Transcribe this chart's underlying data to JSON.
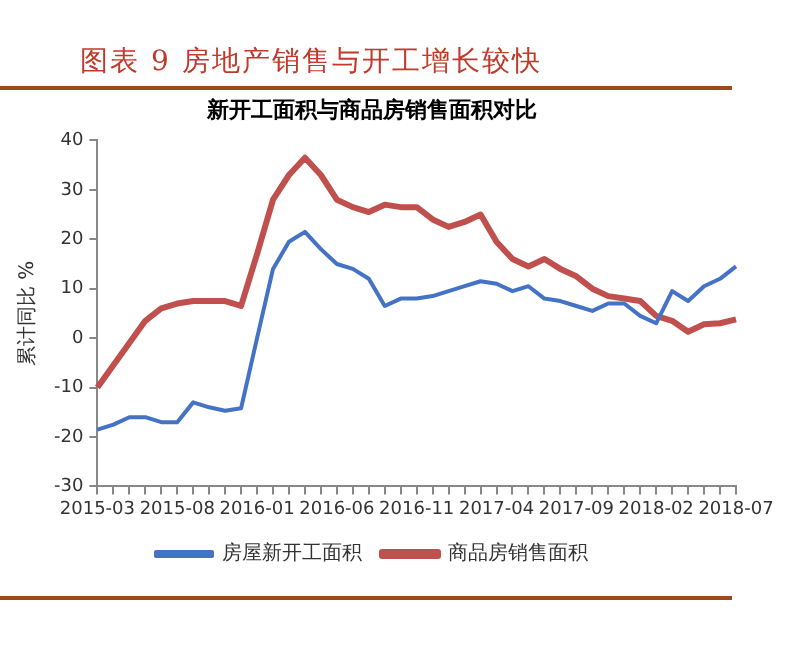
{
  "chart_data": {
    "type": "line",
    "title": "图表 9 房地产销售与开工增长较快",
    "subtitle": "新开工面积与商品房销售面积对比",
    "ylabel": "累计同比 %",
    "categories": [
      "2015-03",
      null,
      null,
      null,
      null,
      "2015-08",
      null,
      null,
      null,
      null,
      "2016-01",
      null,
      null,
      null,
      null,
      "2016-06",
      null,
      null,
      null,
      null,
      "2016-11",
      null,
      null,
      null,
      null,
      "2017-04",
      null,
      null,
      null,
      null,
      "2017-09",
      null,
      null,
      null,
      null,
      "2018-02",
      null,
      null,
      null,
      null,
      "2018-07"
    ],
    "series": [
      {
        "name": "房屋新开工面积",
        "color": "#4472c4",
        "values": [
          -18.5,
          -17.5,
          -16,
          -16,
          -17,
          -17,
          -13,
          -14,
          -14.7,
          -14.2,
          0,
          14,
          19.5,
          21.5,
          18,
          15,
          14,
          12,
          6.5,
          8,
          8,
          8.5,
          9.5,
          10.5,
          11.5,
          11,
          9.5,
          10.5,
          8,
          7.5,
          6.5,
          5.5,
          7,
          7,
          4.5,
          3,
          9.5,
          7.5,
          10.5,
          12,
          14.5
        ]
      },
      {
        "name": "商品房销售面积",
        "color": "#c0504d",
        "values": [
          -10,
          -5.5,
          -1,
          3.5,
          6,
          7,
          7.5,
          7.5,
          7.5,
          6.5,
          17,
          28,
          33,
          36.5,
          33,
          28,
          26.5,
          25.5,
          27,
          26.5,
          26.5,
          24,
          22.5,
          23.5,
          25,
          19.5,
          16,
          14.5,
          16,
          14,
          12.5,
          10,
          8.5,
          8,
          7.5,
          4.5,
          3.5,
          1.3,
          2.8,
          3,
          3.8
        ]
      }
    ],
    "ylim": [
      -30,
      40
    ],
    "yticks": [
      -30,
      -20,
      -10,
      0,
      10,
      20,
      30,
      40
    ],
    "grid": false,
    "legend": "bottom",
    "marker": "none",
    "line_style": "solid"
  }
}
